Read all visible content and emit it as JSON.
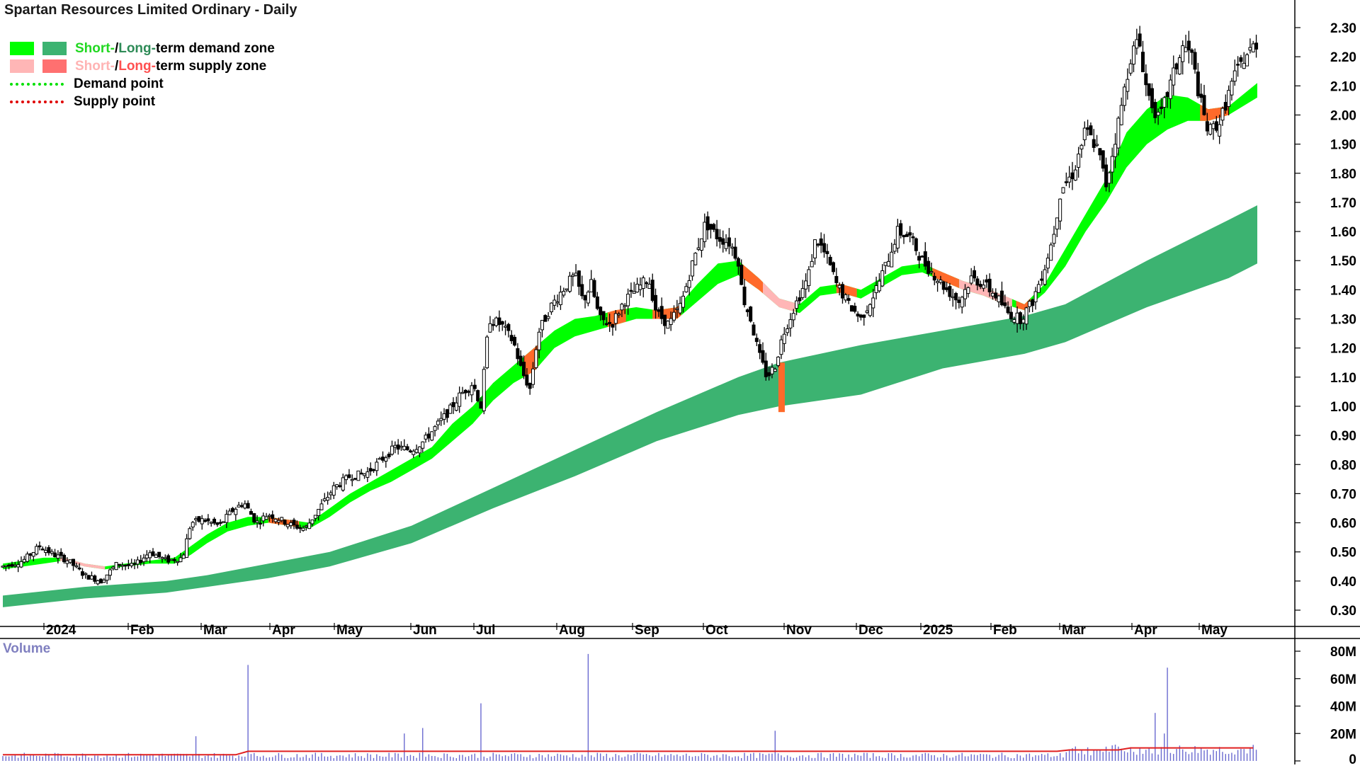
{
  "title": "Spartan Resources Limited Ordinary - Daily",
  "legend": {
    "demand_zone": {
      "short": "Short-",
      "sep": " / ",
      "long": "Long-",
      "rest": "term demand zone"
    },
    "supply_zone": {
      "short": "Short-",
      "sep": " / ",
      "long": "Long-",
      "rest": "term supply zone"
    },
    "demand_point": "Demand point",
    "supply_point": "Supply point"
  },
  "colors": {
    "short_demand": "#00ff00",
    "long_demand": "#3cb371",
    "short_supply": "#ffb6b6",
    "long_supply": "#ff7070",
    "short_demand_text": "#22d822",
    "long_demand_text": "#2e8b57",
    "short_supply_text": "#ffb3b3",
    "long_supply_text": "#ff5050",
    "orange": "#ff6a2a",
    "volume_bar": "#6a6ad0",
    "volume_ma": "#e02020"
  },
  "volume_label": "Volume",
  "chart_data": {
    "type": "candlestick",
    "price_axis": {
      "ticks": [
        "2.30",
        "2.20",
        "2.10",
        "2.00",
        "1.90",
        "1.80",
        "1.70",
        "1.60",
        "1.50",
        "1.40",
        "1.30",
        "1.20",
        "1.10",
        "1.00",
        "0.90",
        "0.80",
        "0.70",
        "0.60",
        "0.50",
        "0.40",
        "0.30"
      ],
      "range": [
        0.26,
        2.38
      ]
    },
    "volume_axis": {
      "ticks": [
        "80M",
        "60M",
        "40M",
        "20M",
        "0"
      ],
      "range": [
        0,
        80
      ]
    },
    "months": [
      "2024",
      "Feb",
      "Mar",
      "Apr",
      "May",
      "Jun",
      "Jul",
      "Aug",
      "Sep",
      "Oct",
      "Nov",
      "Dec",
      "2025",
      "Feb",
      "Mar",
      "Apr",
      "May"
    ],
    "price_path": [
      [
        0,
        0.45
      ],
      [
        10,
        0.47
      ],
      [
        18,
        0.52
      ],
      [
        25,
        0.49
      ],
      [
        32,
        0.47
      ],
      [
        40,
        0.42
      ],
      [
        48,
        0.4
      ],
      [
        56,
        0.46
      ],
      [
        64,
        0.45
      ],
      [
        72,
        0.5
      ],
      [
        80,
        0.47
      ],
      [
        88,
        0.48
      ],
      [
        92,
        0.6
      ],
      [
        98,
        0.61
      ],
      [
        106,
        0.59
      ],
      [
        112,
        0.64
      ],
      [
        118,
        0.67
      ],
      [
        124,
        0.6
      ],
      [
        130,
        0.63
      ],
      [
        136,
        0.61
      ],
      [
        142,
        0.59
      ],
      [
        148,
        0.58
      ],
      [
        154,
        0.64
      ],
      [
        162,
        0.72
      ],
      [
        170,
        0.76
      ],
      [
        178,
        0.77
      ],
      [
        186,
        0.82
      ],
      [
        192,
        0.86
      ],
      [
        200,
        0.85
      ],
      [
        206,
        0.88
      ],
      [
        212,
        0.93
      ],
      [
        218,
        0.98
      ],
      [
        224,
        1.04
      ],
      [
        230,
        1.08
      ],
      [
        234,
        1.0
      ],
      [
        238,
        1.3
      ],
      [
        244,
        1.28
      ],
      [
        250,
        1.22
      ],
      [
        254,
        1.12
      ],
      [
        258,
        1.06
      ],
      [
        262,
        1.25
      ],
      [
        268,
        1.34
      ],
      [
        274,
        1.4
      ],
      [
        280,
        1.45
      ],
      [
        284,
        1.36
      ],
      [
        288,
        1.42
      ],
      [
        292,
        1.3
      ],
      [
        298,
        1.28
      ],
      [
        304,
        1.36
      ],
      [
        310,
        1.4
      ],
      [
        316,
        1.44
      ],
      [
        320,
        1.32
      ],
      [
        326,
        1.28
      ],
      [
        332,
        1.35
      ],
      [
        338,
        1.5
      ],
      [
        344,
        1.63
      ],
      [
        350,
        1.58
      ],
      [
        356,
        1.56
      ],
      [
        360,
        1.5
      ],
      [
        362,
        1.38
      ],
      [
        366,
        1.3
      ],
      [
        370,
        1.18
      ],
      [
        374,
        1.1
      ],
      [
        378,
        1.14
      ],
      [
        382,
        1.25
      ],
      [
        388,
        1.35
      ],
      [
        394,
        1.44
      ],
      [
        398,
        1.58
      ],
      [
        404,
        1.5
      ],
      [
        408,
        1.42
      ],
      [
        414,
        1.35
      ],
      [
        420,
        1.3
      ],
      [
        426,
        1.38
      ],
      [
        432,
        1.48
      ],
      [
        438,
        1.6
      ],
      [
        444,
        1.58
      ],
      [
        450,
        1.5
      ],
      [
        456,
        1.45
      ],
      [
        462,
        1.4
      ],
      [
        468,
        1.36
      ],
      [
        474,
        1.44
      ],
      [
        480,
        1.42
      ],
      [
        486,
        1.38
      ],
      [
        492,
        1.32
      ],
      [
        498,
        1.3
      ],
      [
        504,
        1.36
      ],
      [
        510,
        1.48
      ],
      [
        514,
        1.58
      ],
      [
        518,
        1.75
      ],
      [
        524,
        1.8
      ],
      [
        530,
        1.95
      ],
      [
        536,
        1.88
      ],
      [
        540,
        1.76
      ],
      [
        544,
        1.9
      ],
      [
        548,
        2.05
      ],
      [
        552,
        2.2
      ],
      [
        556,
        2.26
      ],
      [
        560,
        2.08
      ],
      [
        566,
        1.98
      ],
      [
        572,
        2.12
      ],
      [
        578,
        2.24
      ],
      [
        582,
        2.2
      ],
      [
        586,
        2.05
      ],
      [
        590,
        1.94
      ],
      [
        596,
        1.98
      ],
      [
        602,
        2.12
      ],
      [
        608,
        2.2
      ],
      [
        614,
        2.25
      ]
    ],
    "short_term_zone": [
      [
        0,
        0.46,
        0.44
      ],
      [
        20,
        0.48,
        0.46
      ],
      [
        30,
        0.48,
        0.47
      ],
      [
        40,
        0.46,
        0.45
      ],
      [
        50,
        0.45,
        0.44
      ],
      [
        60,
        0.46,
        0.45
      ],
      [
        72,
        0.47,
        0.46
      ],
      [
        84,
        0.48,
        0.46
      ],
      [
        92,
        0.52,
        0.49
      ],
      [
        100,
        0.56,
        0.53
      ],
      [
        110,
        0.6,
        0.57
      ],
      [
        120,
        0.62,
        0.59
      ],
      [
        130,
        0.62,
        0.6
      ],
      [
        140,
        0.61,
        0.59
      ],
      [
        150,
        0.6,
        0.58
      ],
      [
        160,
        0.65,
        0.62
      ],
      [
        170,
        0.7,
        0.67
      ],
      [
        180,
        0.74,
        0.71
      ],
      [
        190,
        0.78,
        0.74
      ],
      [
        200,
        0.82,
        0.78
      ],
      [
        210,
        0.86,
        0.82
      ],
      [
        220,
        0.94,
        0.88
      ],
      [
        230,
        1.0,
        0.94
      ],
      [
        240,
        1.08,
        1.02
      ],
      [
        250,
        1.14,
        1.08
      ],
      [
        260,
        1.2,
        1.12
      ],
      [
        270,
        1.26,
        1.2
      ],
      [
        280,
        1.3,
        1.24
      ],
      [
        290,
        1.31,
        1.26
      ],
      [
        300,
        1.33,
        1.28
      ],
      [
        310,
        1.34,
        1.3
      ],
      [
        320,
        1.33,
        1.3
      ],
      [
        330,
        1.34,
        1.3
      ],
      [
        340,
        1.42,
        1.36
      ],
      [
        350,
        1.49,
        1.42
      ],
      [
        360,
        1.5,
        1.45
      ],
      [
        370,
        1.44,
        1.4
      ],
      [
        380,
        1.37,
        1.34
      ],
      [
        390,
        1.35,
        1.32
      ],
      [
        400,
        1.41,
        1.38
      ],
      [
        410,
        1.42,
        1.39
      ],
      [
        420,
        1.4,
        1.37
      ],
      [
        430,
        1.44,
        1.41
      ],
      [
        440,
        1.48,
        1.45
      ],
      [
        450,
        1.49,
        1.46
      ],
      [
        460,
        1.46,
        1.43
      ],
      [
        470,
        1.43,
        1.4
      ],
      [
        480,
        1.41,
        1.38
      ],
      [
        490,
        1.38,
        1.35
      ],
      [
        500,
        1.35,
        1.33
      ],
      [
        510,
        1.42,
        1.39
      ],
      [
        520,
        1.54,
        1.48
      ],
      [
        530,
        1.66,
        1.6
      ],
      [
        540,
        1.78,
        1.7
      ],
      [
        550,
        1.94,
        1.82
      ],
      [
        560,
        2.02,
        1.9
      ],
      [
        570,
        2.07,
        1.95
      ],
      [
        580,
        2.06,
        1.98
      ],
      [
        590,
        2.02,
        1.98
      ],
      [
        600,
        2.03,
        2.0
      ],
      [
        614,
        2.11,
        2.06
      ]
    ],
    "long_term_zone": [
      [
        0,
        0.35,
        0.31
      ],
      [
        40,
        0.38,
        0.34
      ],
      [
        80,
        0.4,
        0.36
      ],
      [
        100,
        0.42,
        0.38
      ],
      [
        130,
        0.46,
        0.41
      ],
      [
        160,
        0.5,
        0.45
      ],
      [
        200,
        0.59,
        0.53
      ],
      [
        240,
        0.72,
        0.65
      ],
      [
        280,
        0.85,
        0.76
      ],
      [
        320,
        0.98,
        0.88
      ],
      [
        360,
        1.1,
        0.97
      ],
      [
        380,
        1.15,
        1.0
      ],
      [
        420,
        1.21,
        1.04
      ],
      [
        460,
        1.26,
        1.13
      ],
      [
        500,
        1.31,
        1.18
      ],
      [
        520,
        1.35,
        1.22
      ],
      [
        560,
        1.5,
        1.34
      ],
      [
        600,
        1.64,
        1.44
      ],
      [
        614,
        1.69,
        1.49
      ]
    ],
    "orange_zones": [
      [
        130,
        145
      ],
      [
        255,
        262
      ],
      [
        296,
        305
      ],
      [
        318,
        332
      ],
      [
        362,
        372
      ],
      [
        408,
        418
      ],
      [
        455,
        468
      ],
      [
        496,
        503
      ],
      [
        586,
        600
      ]
    ],
    "pink_zones": [
      [
        28,
        50
      ],
      [
        370,
        388
      ],
      [
        468,
        494
      ]
    ],
    "volume_values_sample": [
      70,
      78,
      42,
      68,
      35,
      24,
      22
    ],
    "volume_ma": 8
  }
}
